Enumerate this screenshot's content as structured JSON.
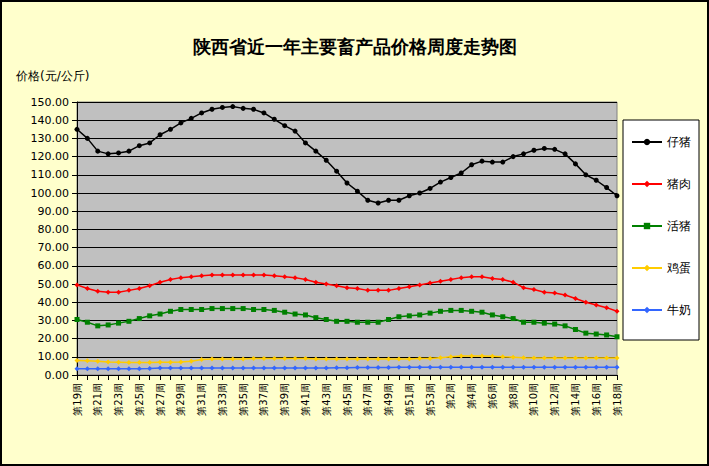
{
  "chart_data": {
    "type": "line",
    "title": "陕西省近一年主要畜产品价格周度走势图",
    "y_label": "价格(元/公斤)",
    "categories": [
      "第19周",
      null,
      "第21周",
      null,
      "第23周",
      null,
      "第25周",
      null,
      "第27周",
      null,
      "第29周",
      null,
      "第31周",
      null,
      "第33周",
      null,
      "第35周",
      null,
      "第37周",
      null,
      "第39周",
      null,
      "第41周",
      null,
      "第43周",
      null,
      "第45周",
      null,
      "第47周",
      null,
      "第49周",
      null,
      "第51周",
      null,
      "第53周",
      null,
      "第2周",
      null,
      "第4周",
      null,
      "第6周",
      null,
      "第8周",
      null,
      "第10周",
      null,
      "第12周",
      null,
      "第14周",
      null,
      "第16周",
      null,
      "第18周"
    ],
    "series": [
      {
        "name": "仔猪",
        "color": "#000000",
        "marker": "circle",
        "values": [
          135,
          130,
          123,
          121.5,
          122,
          123,
          126,
          127.5,
          132,
          135,
          138.5,
          141,
          144,
          146,
          147,
          147.5,
          146.5,
          146,
          144,
          140.5,
          137,
          134,
          127.5,
          123,
          118,
          112,
          105.5,
          101,
          96,
          94.5,
          96,
          96,
          98.5,
          100,
          102.5,
          106,
          108.5,
          111,
          115.5,
          117.5,
          117,
          117,
          120,
          121.5,
          123.5,
          124.5,
          124,
          121.5,
          116,
          110,
          107,
          103,
          98.5
        ]
      },
      {
        "name": "猪肉",
        "color": "#ff0000",
        "marker": "diamond",
        "values": [
          49.5,
          47.5,
          46,
          45.5,
          45.5,
          46.5,
          47.5,
          49,
          51,
          52.5,
          53.5,
          54,
          54.5,
          55,
          55,
          55,
          55,
          55,
          55,
          54.5,
          54,
          53.5,
          52.5,
          51,
          50,
          49,
          48,
          47.5,
          46.5,
          46.5,
          46.5,
          47.5,
          48.5,
          49.5,
          50.5,
          51.5,
          52.5,
          53.5,
          54,
          54,
          53,
          52.5,
          51,
          48,
          47,
          45.5,
          45,
          44,
          42,
          40,
          38.5,
          37,
          35
        ]
      },
      {
        "name": "活猪",
        "color": "#008000",
        "marker": "square",
        "values": [
          30.5,
          29,
          27,
          27.5,
          28.5,
          29.5,
          31,
          32.5,
          33.5,
          35,
          36,
          36,
          36,
          36.5,
          36.5,
          36.5,
          36.5,
          36,
          36,
          35.5,
          34.5,
          33.5,
          33,
          31.5,
          30.5,
          29.5,
          29.5,
          29,
          29,
          29,
          30.5,
          32,
          32.5,
          33,
          34,
          35,
          35.5,
          35.5,
          35,
          34.5,
          33,
          32,
          31,
          29,
          29,
          28.5,
          28,
          27,
          25,
          23,
          22.5,
          22,
          21
        ]
      },
      {
        "name": "鸡蛋",
        "color": "#ffcc00",
        "marker": "diamond",
        "values": [
          8,
          7.8,
          7.5,
          7.2,
          7,
          6.8,
          6.8,
          6.8,
          7,
          7,
          7.2,
          7.5,
          8.5,
          8.8,
          8.8,
          8.8,
          8.8,
          9,
          9,
          9,
          9,
          9,
          9,
          8.8,
          8.8,
          8.8,
          8.8,
          8.8,
          8.8,
          8.8,
          8.8,
          8.8,
          8.8,
          9,
          9,
          9.5,
          10,
          10.5,
          10.5,
          10.5,
          10.3,
          10,
          9.8,
          9.5,
          9.3,
          9.3,
          9.3,
          9.3,
          9.3,
          9.3,
          9.3,
          9.3,
          9.3
        ]
      },
      {
        "name": "牛奶",
        "color": "#3366ff",
        "marker": "diamond",
        "values": [
          3.4,
          3.4,
          3.4,
          3.4,
          3.4,
          3.5,
          3.5,
          3.6,
          3.8,
          3.8,
          3.8,
          3.8,
          3.8,
          3.8,
          3.8,
          3.8,
          3.8,
          3.9,
          3.9,
          3.9,
          3.9,
          3.9,
          3.9,
          3.9,
          3.9,
          4,
          4,
          4.1,
          4.1,
          4.1,
          4.1,
          4.2,
          4.2,
          4.2,
          4.2,
          4.2,
          4.2,
          4.2,
          4.3,
          4.3,
          4.3,
          4.3,
          4.3,
          4.3,
          4.3,
          4.3,
          4.3,
          4.3,
          4.3,
          4.3,
          4.3,
          4.3,
          4.3
        ]
      }
    ],
    "ylim": [
      0,
      150
    ],
    "yticks": [
      {
        "value": 0,
        "label": "0.00"
      },
      {
        "value": 10,
        "label": "10.00"
      },
      {
        "value": 20,
        "label": "20.00"
      },
      {
        "value": 30,
        "label": "30.00"
      },
      {
        "value": 40,
        "label": "40.00"
      },
      {
        "value": 50,
        "label": "50.00"
      },
      {
        "value": 60,
        "label": "60.00"
      },
      {
        "value": 70,
        "label": "70.00"
      },
      {
        "value": 80,
        "label": "80.00"
      },
      {
        "value": 90,
        "label": "90.00"
      },
      {
        "value": 100,
        "label": "100.00"
      },
      {
        "value": 110,
        "label": "110.00"
      },
      {
        "value": 120,
        "label": "120.00"
      },
      {
        "value": 130,
        "label": "130.00"
      },
      {
        "value": 140,
        "label": "140.00"
      },
      {
        "value": 150,
        "label": "150.00"
      }
    ],
    "grid": true,
    "legend": "right"
  }
}
